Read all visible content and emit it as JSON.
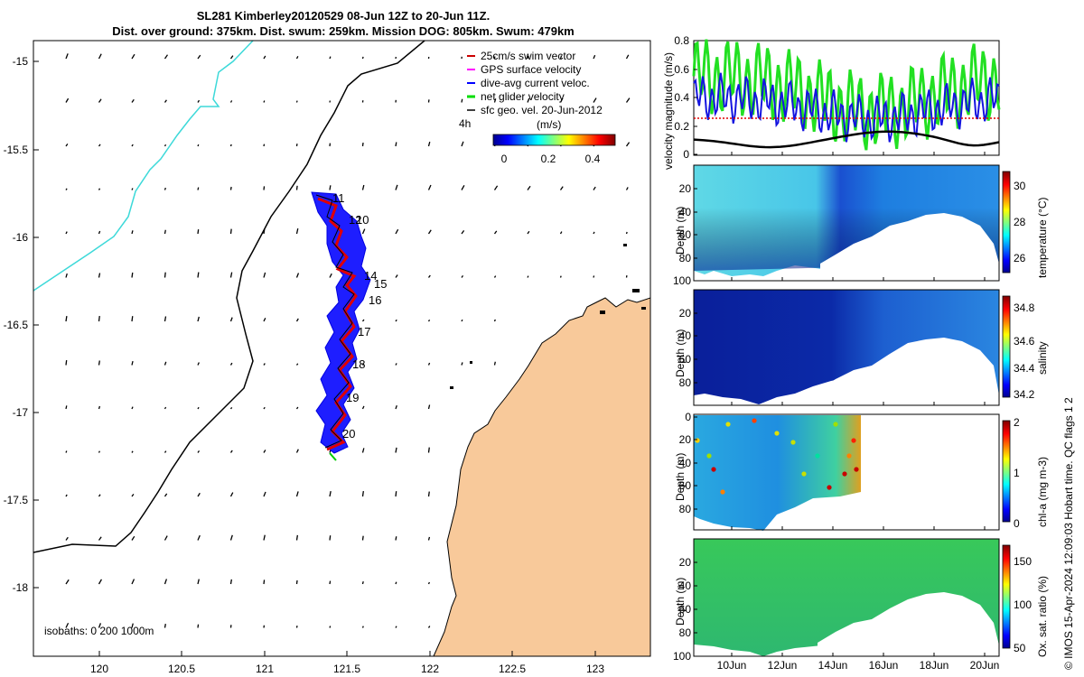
{
  "title": {
    "line1": "SL281 Kimberley20120529 08-Jun 12Z to 20-Jun 11Z.",
    "line2": "Dist. over ground: 375km. Dist. swum: 259km. Mission DOG: 805km. Swum: 479km"
  },
  "map": {
    "lon_ticks": [
      "120",
      "120.5",
      "121",
      "121.5",
      "122",
      "122.5",
      "123"
    ],
    "lat_ticks": [
      "-15",
      "-15.5",
      "-16",
      "-16.5",
      "-17",
      "-17.5",
      "-18"
    ],
    "legend": [
      {
        "label": "25cm/s swim vector",
        "color": "#cc0000"
      },
      {
        "label": "GPS surface velocity",
        "color": "#ff00ff"
      },
      {
        "label": "dive-avg current veloc.",
        "color": "#0000ff"
      },
      {
        "label": "net glider velocity",
        "color": "#00dd00"
      },
      {
        "label": "sfc geo. vel. 20-Jun-2012",
        "color": "#000000"
      }
    ],
    "scale_label": "4h",
    "colorbar_title": "(m/s)",
    "colorbar_ticks": [
      "0",
      "0.2",
      "0.4"
    ],
    "day_labels": [
      "11",
      "12",
      "10",
      "14",
      "15",
      "16",
      "17",
      "18",
      "19",
      "20"
    ],
    "isobath_text": "isobaths: 0   200  1000m"
  },
  "panels": {
    "velocity": {
      "ylabel": "velocity magnitude (m/s)",
      "yticks": [
        "0",
        "0.2",
        "0.4",
        "0.6",
        "0.8"
      ]
    },
    "temperature": {
      "ylabel": "Depth (m)",
      "yticks": [
        "20",
        "40",
        "60",
        "80",
        "100"
      ],
      "cbar_label": "temperature (°C)",
      "cbar_ticks": [
        "30",
        "28",
        "26"
      ]
    },
    "salinity": {
      "ylabel": "Depth (m)",
      "yticks": [
        "20",
        "40",
        "60",
        "80"
      ],
      "cbar_label": "salinity",
      "cbar_ticks": [
        "34.8",
        "34.6",
        "34.4",
        "34.2"
      ]
    },
    "chla": {
      "ylabel": "Depth (m)",
      "yticks": [
        "0",
        "20",
        "40",
        "60",
        "80"
      ],
      "cbar_label": "chl-a (mg m-3)",
      "cbar_ticks": [
        "2",
        "1",
        "0"
      ]
    },
    "oxygen": {
      "ylabel": "Depth (m)",
      "yticks": [
        "20",
        "40",
        "60",
        "80",
        "100"
      ],
      "cbar_label": "Ox. sat. ratio (%)",
      "cbar_ticks": [
        "150",
        "100",
        "50"
      ]
    },
    "time_ticks": [
      "10Jun",
      "12Jun",
      "14Jun",
      "16Jun",
      "18Jun",
      "20Jun"
    ]
  },
  "footer": "© IMOS 15-Apr-2024 12:09:03 Hobart time. QC flags 1  2",
  "colors": {
    "land": "#f8c99a",
    "coast": "#000000",
    "isobath_shallow": "#3dd9d9",
    "accent_blue": "#0000ff",
    "accent_green": "#00dd00"
  }
}
